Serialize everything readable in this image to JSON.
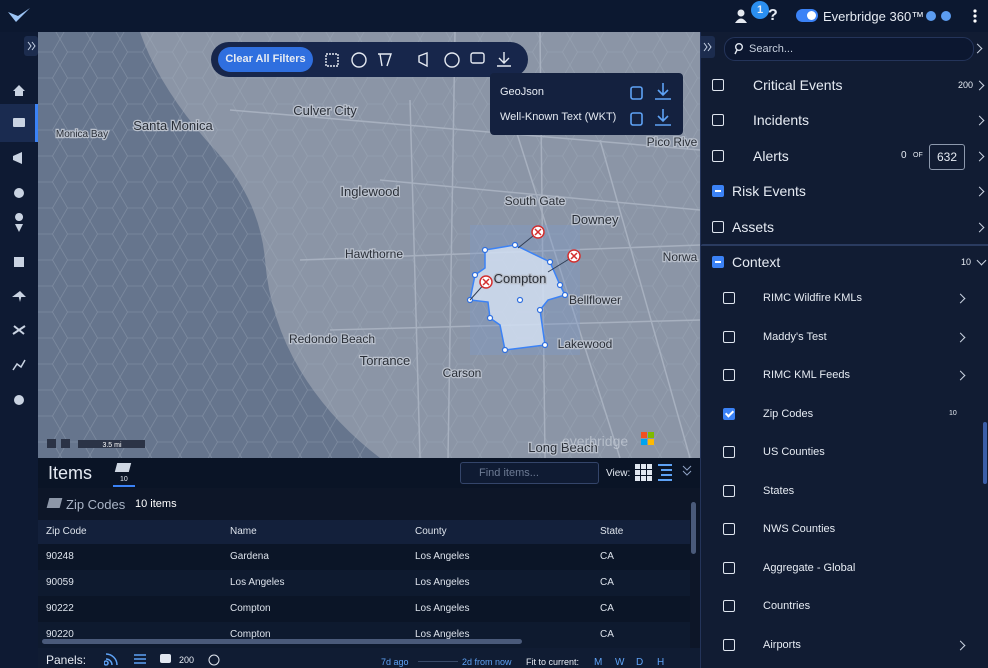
{
  "top_bar": {
    "notification_count": 1,
    "help": "?",
    "product": "Everbridge 360™"
  },
  "map": {
    "toolbar": {
      "clear_filters": "Clear All Filters"
    },
    "export_menu": [
      "GeoJson",
      "Well-Known Text (WKT)"
    ],
    "labels": [
      "Santa Monica",
      "Culver City",
      "Inglewood",
      "South Gate",
      "Downey",
      "Hawthorne",
      "Compton",
      "Bellflower",
      "Redondo Beach",
      "Torrance",
      "Carson",
      "Lakewood",
      "Long Beach",
      "Pico Rive",
      "Norwa",
      "Monica Bay"
    ],
    "scale": "3.5 mi",
    "watermark": "everbridge"
  },
  "items_panel": {
    "title": "Items",
    "badge": 10,
    "search_placeholder": "Find items...",
    "view_label": "View:",
    "group": "Zip Codes",
    "group_count": "10 items",
    "table": {
      "headers": [
        "Zip Code",
        "Name",
        "County",
        "State"
      ],
      "rows": [
        [
          "90248",
          "Gardena",
          "Los Angeles",
          "CA"
        ],
        [
          "90059",
          "Los Angeles",
          "Los Angeles",
          "CA"
        ],
        [
          "90222",
          "Compton",
          "Los Angeles",
          "CA"
        ],
        [
          "90220",
          "Compton",
          "Los Angeles",
          "CA"
        ]
      ]
    }
  },
  "footer": {
    "panels_label": "Panels:",
    "count": 200,
    "start": "7d ago",
    "end": "2d from now",
    "fit_label": "Fit to current:",
    "fit_options": [
      "M",
      "W",
      "D",
      "H"
    ]
  },
  "layers": {
    "search_placeholder": "Search...",
    "items": [
      {
        "label": "Critical Events",
        "count": 200
      },
      {
        "label": "Incidents"
      },
      {
        "label": "Alerts",
        "count": 0,
        "of": "OF",
        "total": 632
      },
      {
        "label": "Risk Events",
        "state": "partial"
      },
      {
        "label": "Assets"
      }
    ],
    "context": {
      "label": "Context",
      "count": 10,
      "state": "partial",
      "items": [
        {
          "label": "RIMC Wildfire KMLs"
        },
        {
          "label": "Maddy's Test"
        },
        {
          "label": "RIMC KML Feeds"
        },
        {
          "label": "Zip Codes",
          "count": 10,
          "state": "checked"
        },
        {
          "label": "US Counties"
        },
        {
          "label": "States"
        },
        {
          "label": "NWS Counties"
        },
        {
          "label": "Aggregate - Global"
        },
        {
          "label": "Countries"
        },
        {
          "label": "Airports"
        }
      ]
    }
  }
}
